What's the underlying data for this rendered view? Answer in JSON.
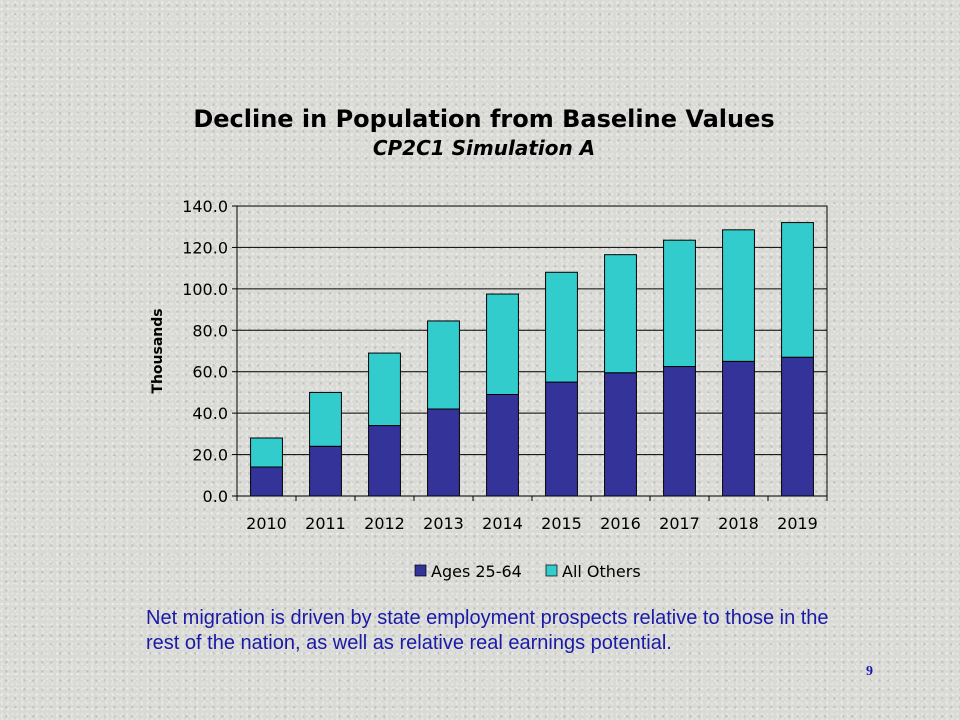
{
  "slide": {
    "caption": "Net migration is driven by state employment prospects relative to those in the rest of the nation, as well as relative real earnings potential.",
    "page_number": "9"
  },
  "colors": {
    "series_1": "#333399",
    "series_2": "#33cccc",
    "caption_text": "#1a1aa6"
  },
  "chart_data": {
    "type": "bar",
    "stacked": true,
    "title": "Decline in Population from Baseline Values",
    "subtitle": "CP2C1 Simulation A",
    "xlabel": "",
    "ylabel": "Thousands",
    "ylim": [
      0,
      140
    ],
    "ytick_step": 20,
    "ytick_labels": [
      "0.0",
      "20.0",
      "40.0",
      "60.0",
      "80.0",
      "100.0",
      "120.0",
      "140.0"
    ],
    "grid": true,
    "legend_position": "bottom",
    "categories": [
      "2010",
      "2011",
      "2012",
      "2013",
      "2014",
      "2015",
      "2016",
      "2017",
      "2018",
      "2019"
    ],
    "series": [
      {
        "name": "Ages 25-64",
        "color": "#333399",
        "values": [
          14,
          24,
          34,
          42,
          49,
          55,
          59.5,
          62.5,
          65,
          67
        ]
      },
      {
        "name": "All Others",
        "color": "#33cccc",
        "values": [
          14,
          26,
          35,
          42.5,
          48.5,
          53,
          57,
          61,
          63.5,
          65
        ]
      }
    ]
  }
}
